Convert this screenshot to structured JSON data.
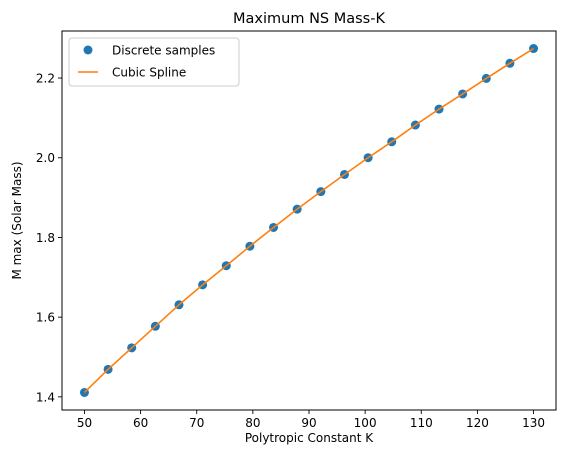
{
  "chart_data": {
    "type": "line",
    "title": "Maximum NS Mass-K",
    "xlabel": "Polytropic Constant K",
    "ylabel": "M max (Solar Mass)",
    "xlim": [
      46,
      134
    ],
    "ylim": [
      1.367,
      2.318
    ],
    "xticks": [
      50,
      60,
      70,
      80,
      90,
      100,
      110,
      120,
      130
    ],
    "yticks": [
      1.4,
      1.6,
      1.8,
      2.0,
      2.2
    ],
    "ytick_labels": [
      "1.4",
      "1.6",
      "1.8",
      "2.0",
      "2.2"
    ],
    "grid": false,
    "legend_position": "top-left",
    "series": [
      {
        "name": "Discrete samples",
        "style": "scatter",
        "color": "#1f77b4",
        "x": [
          50,
          54.21,
          58.42,
          62.63,
          66.84,
          71.05,
          75.26,
          79.47,
          83.68,
          87.89,
          92.11,
          96.32,
          100.53,
          104.74,
          108.95,
          113.16,
          117.37,
          121.58,
          125.79,
          130
        ],
        "y": [
          1.411,
          1.469,
          1.523,
          1.577,
          1.631,
          1.681,
          1.729,
          1.778,
          1.825,
          1.871,
          1.915,
          1.958,
          2.0,
          2.04,
          2.082,
          2.122,
          2.16,
          2.199,
          2.237,
          2.274
        ]
      },
      {
        "name": "Cubic Spline",
        "style": "line",
        "color": "#ff7f0e",
        "x": [
          50,
          54.21,
          58.42,
          62.63,
          66.84,
          71.05,
          75.26,
          79.47,
          83.68,
          87.89,
          92.11,
          96.32,
          100.53,
          104.74,
          108.95,
          113.16,
          117.37,
          121.58,
          125.79,
          130
        ],
        "y": [
          1.411,
          1.469,
          1.523,
          1.577,
          1.631,
          1.681,
          1.729,
          1.778,
          1.825,
          1.871,
          1.915,
          1.958,
          2.0,
          2.04,
          2.082,
          2.122,
          2.16,
          2.199,
          2.237,
          2.274
        ]
      }
    ]
  }
}
